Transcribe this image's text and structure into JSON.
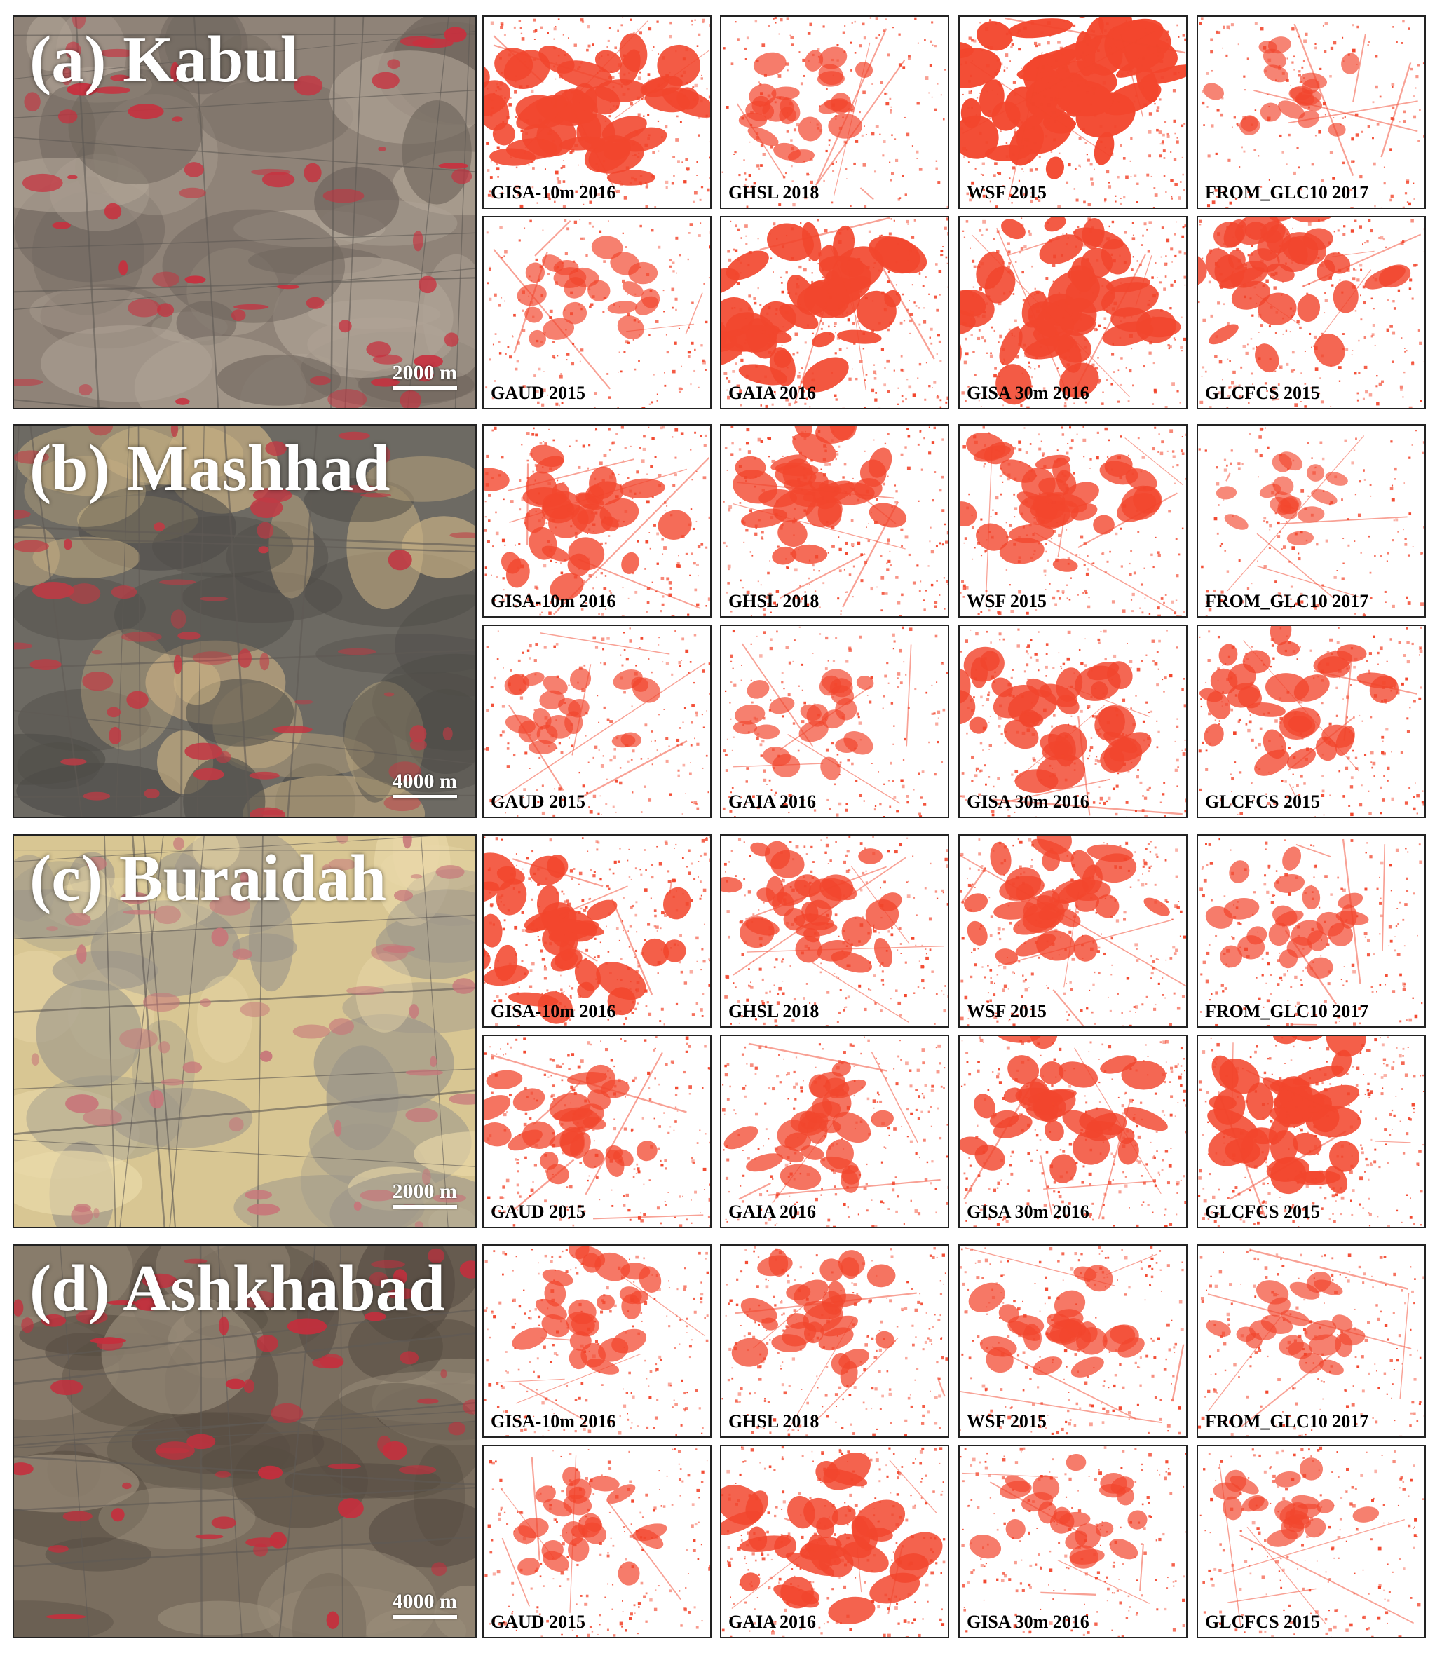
{
  "colors": {
    "urban_fill": "#f2462d",
    "frame": "#222222",
    "title_text": "#ffffff"
  },
  "panels": [
    {
      "title": "(a) Kabul",
      "scale_label": "2000 m",
      "image_tone": "grey-brown with red vegetation",
      "maps": [
        {
          "label": "GISA-10m 2016",
          "density": 0.75
        },
        {
          "label": "GHSL 2018",
          "density": 0.35
        },
        {
          "label": "WSF 2015",
          "density": 0.9
        },
        {
          "label": "FROM_GLC10 2017",
          "density": 0.25
        },
        {
          "label": "GAUD 2015",
          "density": 0.3
        },
        {
          "label": "GAIA 2016",
          "density": 0.8
        },
        {
          "label": "GISA 30m 2016",
          "density": 0.75
        },
        {
          "label": "GLCFCS 2015",
          "density": 0.6
        }
      ]
    },
    {
      "title": "(b) Mashhad",
      "scale_label": "4000 m",
      "image_tone": "dark grey city on desert",
      "maps": [
        {
          "label": "GISA-10m 2016",
          "density": 0.55
        },
        {
          "label": "GHSL 2018",
          "density": 0.55
        },
        {
          "label": "WSF 2015",
          "density": 0.55
        },
        {
          "label": "FROM_GLC10 2017",
          "density": 0.2
        },
        {
          "label": "GAUD 2015",
          "density": 0.3
        },
        {
          "label": "GAIA 2016",
          "density": 0.3
        },
        {
          "label": "GISA 30m 2016",
          "density": 0.6
        },
        {
          "label": "GLCFCS 2015",
          "density": 0.5
        }
      ]
    },
    {
      "title": "(c) Buraidah",
      "scale_label": "2000 m",
      "image_tone": "sandy desert with grid city",
      "maps": [
        {
          "label": "GISA-10m 2016",
          "density": 0.7
        },
        {
          "label": "GHSL 2018",
          "density": 0.5
        },
        {
          "label": "WSF 2015",
          "density": 0.55
        },
        {
          "label": "FROM_GLC10 2017",
          "density": 0.35
        },
        {
          "label": "GAUD 2015",
          "density": 0.45
        },
        {
          "label": "GAIA 2016",
          "density": 0.45
        },
        {
          "label": "GISA 30m 2016",
          "density": 0.6
        },
        {
          "label": "GLCFCS 2015",
          "density": 0.7
        }
      ]
    },
    {
      "title": "(d) Ashkhabad",
      "scale_label": "4000 m",
      "image_tone": "brown terrain with red fields",
      "maps": [
        {
          "label": "GISA-10m 2016",
          "density": 0.4
        },
        {
          "label": "GHSL 2018",
          "density": 0.45
        },
        {
          "label": "WSF 2015",
          "density": 0.4
        },
        {
          "label": "FROM_GLC10 2017",
          "density": 0.3
        },
        {
          "label": "GAUD 2015",
          "density": 0.35
        },
        {
          "label": "GAIA 2016",
          "density": 0.65
        },
        {
          "label": "GISA 30m 2016",
          "density": 0.35
        },
        {
          "label": "GLCFCS 2015",
          "density": 0.3
        }
      ]
    }
  ]
}
